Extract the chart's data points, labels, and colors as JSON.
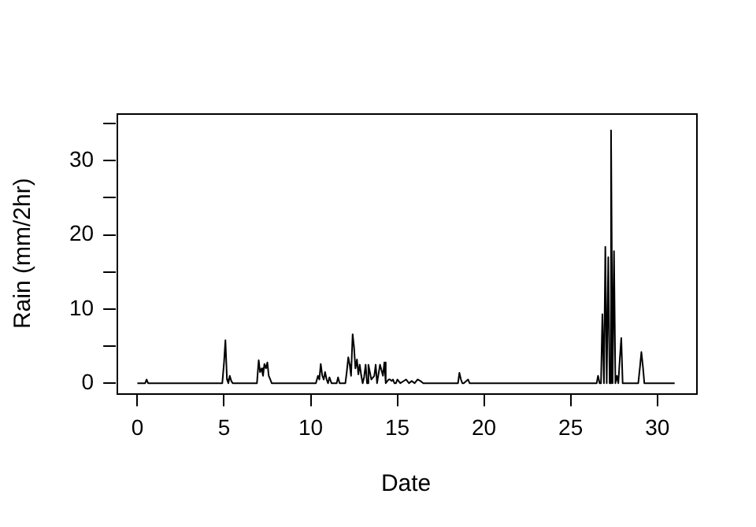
{
  "chart_data": {
    "type": "line",
    "xlabel": "Date",
    "ylabel": "Rain (mm/2hr)",
    "xlim": [
      -1.24,
      32.24
    ],
    "xticks": [
      0,
      5,
      10,
      15,
      20,
      25,
      30
    ],
    "ylim": [
      -1.4,
      36.4
    ],
    "yticks": [
      0,
      {
        "value": 5,
        "label": null
      },
      10,
      {
        "value": 15,
        "label": null
      },
      20,
      {
        "value": 25,
        "label": null
      },
      30,
      {
        "value": 35,
        "label": null
      }
    ],
    "grid": false,
    "legend": false,
    "marker": "none",
    "line_style": "solid",
    "series": [
      {
        "color": "#000000",
        "x": [
          0,
          0.45,
          0.53,
          0.62,
          4.9,
          5.0,
          5.08,
          5.17,
          5.25,
          5.33,
          5.42,
          5.5,
          6.9,
          7.0,
          7.08,
          7.17,
          7.25,
          7.33,
          7.42,
          7.5,
          7.58,
          7.67,
          7.75,
          7.83,
          10.3,
          10.42,
          10.5,
          10.58,
          10.67,
          10.75,
          10.83,
          10.92,
          11.0,
          11.08,
          11.2,
          11.5,
          11.58,
          11.67,
          12.0,
          12.08,
          12.17,
          12.25,
          12.33,
          12.42,
          12.5,
          12.58,
          12.67,
          12.75,
          12.83,
          12.92,
          13.0,
          13.08,
          13.17,
          13.25,
          13.33,
          13.5,
          13.67,
          13.75,
          13.83,
          14.0,
          14.17,
          14.25,
          14.33,
          14.5,
          14.58,
          14.67,
          14.75,
          14.83,
          14.92,
          15.0,
          15.17,
          15.5,
          15.67,
          15.83,
          16.0,
          16.17,
          16.33,
          16.5,
          18.5,
          18.58,
          18.67,
          18.75,
          18.83,
          19.08,
          19.17,
          19.25,
          26.5,
          26.58,
          26.67,
          26.75,
          26.83,
          26.92,
          27.0,
          27.08,
          27.17,
          27.25,
          27.33,
          27.42,
          27.5,
          27.58,
          27.67,
          27.75,
          27.83,
          27.92,
          28.0,
          28.08,
          28.9,
          29.0,
          29.08,
          29.17,
          29.25,
          29.33,
          31.0
        ],
        "values": [
          0,
          0,
          0.5,
          0,
          0,
          2.8,
          5.8,
          0.5,
          0,
          1,
          0.3,
          0,
          0,
          3.1,
          1.5,
          2,
          1,
          2.6,
          2,
          2.8,
          1,
          0.5,
          0,
          0,
          0,
          1,
          0.5,
          2.6,
          1,
          0.5,
          1.5,
          0.5,
          0,
          0.8,
          0,
          0,
          0.8,
          0,
          0,
          1.5,
          3.5,
          2.5,
          1,
          6.6,
          4.9,
          2,
          3.2,
          1.2,
          2.5,
          1,
          0,
          0.8,
          2.5,
          0,
          2.5,
          0.5,
          1,
          2.5,
          0,
          2.5,
          1,
          2.8,
          0,
          0.5,
          0.5,
          0.3,
          0.5,
          0,
          0,
          0.5,
          0,
          0.5,
          0,
          0.3,
          0,
          0.5,
          0.3,
          0,
          0,
          1.4,
          0.5,
          0,
          0,
          0.5,
          0,
          0,
          0,
          1,
          0,
          0,
          9.3,
          0,
          18.4,
          0,
          17,
          0,
          34.1,
          0,
          17.8,
          0,
          1,
          0,
          3.1,
          6.1,
          0,
          0,
          0,
          2.2,
          4.2,
          2.2,
          0,
          0,
          0
        ]
      }
    ]
  }
}
